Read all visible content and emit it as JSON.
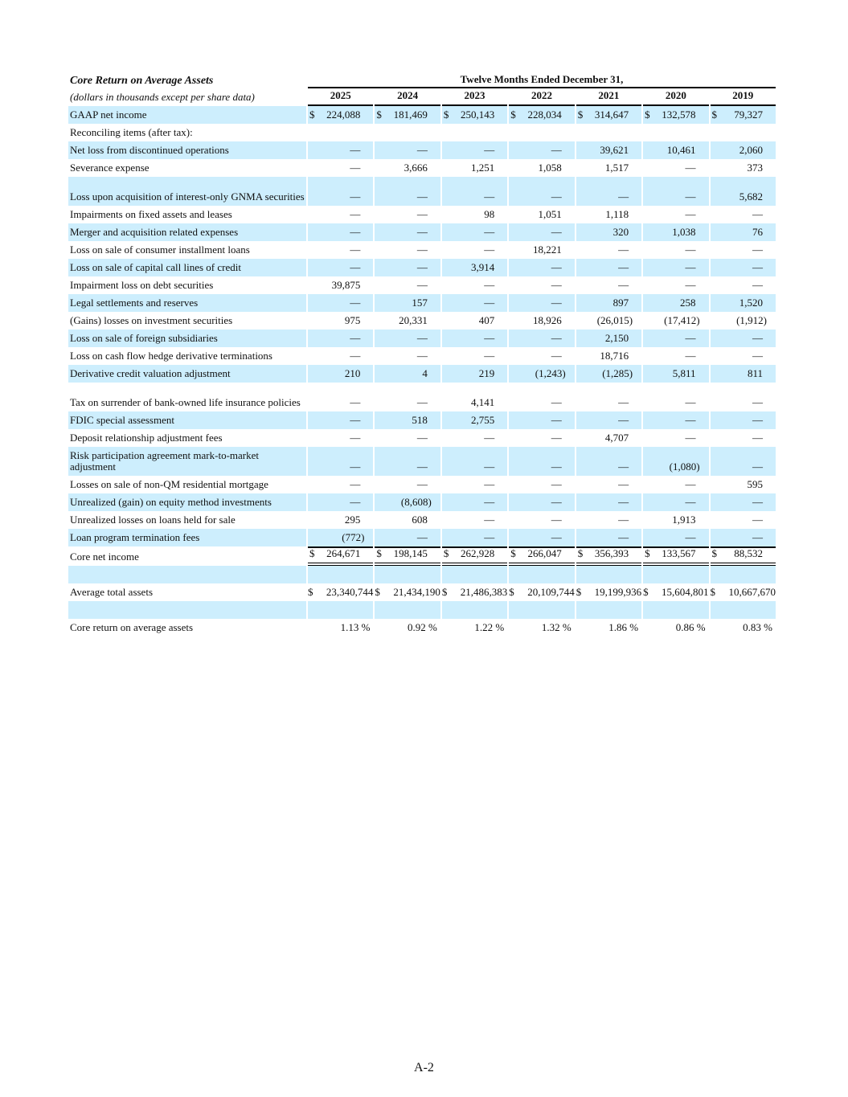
{
  "table": {
    "title": "Core Return on Average Assets",
    "period_header": "Twelve Months Ended December 31,",
    "subtitle": "(dollars in thousands except per share data)",
    "years": [
      "2025",
      "2024",
      "2023",
      "2022",
      "2021",
      "2020",
      "2019"
    ],
    "rows": [
      {
        "label": "GAAP net income",
        "dollar": true,
        "values": [
          "224,088",
          "181,469",
          "250,143",
          "228,034",
          "314,647",
          "132,578",
          "79,327"
        ]
      },
      {
        "label": "Reconciling items (after tax):",
        "values": []
      },
      {
        "label": "Net loss from discontinued operations",
        "values": [
          "—",
          "—",
          "—",
          "—",
          "39,621",
          "10,461",
          "2,060"
        ]
      },
      {
        "label": "Severance expense",
        "values": [
          "—",
          "3,666",
          "1,251",
          "1,058",
          "1,517",
          "—",
          "373"
        ]
      },
      {
        "label": "Loss upon acquisition of interest-only GNMA securities",
        "two": true,
        "values": [
          "—",
          "—",
          "—",
          "—",
          "—",
          "—",
          "5,682"
        ]
      },
      {
        "label": "Impairments on fixed assets and leases",
        "values": [
          "—",
          "—",
          "98",
          "1,051",
          "1,118",
          "—",
          "—"
        ]
      },
      {
        "label": "Merger and acquisition related expenses",
        "values": [
          "—",
          "—",
          "—",
          "—",
          "320",
          "1,038",
          "76"
        ]
      },
      {
        "label": "Loss on sale of consumer installment loans",
        "values": [
          "—",
          "—",
          "—",
          "18,221",
          "—",
          "—",
          "—"
        ]
      },
      {
        "label": "Loss on sale of capital call lines of credit",
        "values": [
          "—",
          "—",
          "3,914",
          "—",
          "—",
          "—",
          "—"
        ]
      },
      {
        "label": "Impairment loss on debt securities",
        "values": [
          "39,875",
          "—",
          "—",
          "—",
          "—",
          "—",
          "—"
        ]
      },
      {
        "label": "Legal settlements and reserves",
        "values": [
          "—",
          "157",
          "—",
          "—",
          "897",
          "258",
          "1,520"
        ]
      },
      {
        "label": "(Gains) losses on investment securities",
        "values": [
          "975",
          "20,331",
          "407",
          "18,926",
          "(26,015)",
          "(17,412)",
          "(1,912)"
        ]
      },
      {
        "label": "Loss on sale of foreign subsidiaries",
        "values": [
          "—",
          "—",
          "—",
          "—",
          "2,150",
          "—",
          "—"
        ]
      },
      {
        "label": "Loss on cash flow hedge derivative terminations",
        "values": [
          "—",
          "—",
          "—",
          "—",
          "18,716",
          "—",
          "—"
        ]
      },
      {
        "label": "Derivative credit valuation adjustment",
        "values": [
          "210",
          "4",
          "219",
          "(1,243)",
          "(1,285)",
          "5,811",
          "811"
        ]
      },
      {
        "label": "Tax on surrender of bank-owned life insurance policies",
        "two": true,
        "values": [
          "—",
          "—",
          "4,141",
          "—",
          "—",
          "—",
          "—"
        ]
      },
      {
        "label": "FDIC special assessment",
        "values": [
          "—",
          "518",
          "2,755",
          "—",
          "—",
          "—",
          "—"
        ]
      },
      {
        "label": "Deposit relationship adjustment fees",
        "values": [
          "—",
          "—",
          "—",
          "—",
          "4,707",
          "—",
          "—"
        ]
      },
      {
        "label": "Risk participation agreement mark-to-market adjustment",
        "two": true,
        "values": [
          "—",
          "—",
          "—",
          "—",
          "—",
          "(1,080)",
          "—"
        ]
      },
      {
        "label": "Losses on sale of non-QM residential mortgage",
        "values": [
          "—",
          "—",
          "—",
          "—",
          "—",
          "—",
          "595"
        ]
      },
      {
        "label": "Unrealized (gain) on equity method investments",
        "values": [
          "—",
          "(8,608)",
          "—",
          "—",
          "—",
          "—",
          "—"
        ]
      },
      {
        "label": "Unrealized losses on loans held for sale",
        "values": [
          "295",
          "608",
          "—",
          "—",
          "—",
          "1,913",
          "—"
        ]
      },
      {
        "label": "Loan program termination fees",
        "values": [
          "(772)",
          "—",
          "—",
          "—",
          "—",
          "—",
          "—"
        ]
      },
      {
        "label": "Core net income",
        "dollar": true,
        "total": true,
        "values": [
          "264,671",
          "198,145",
          "262,928",
          "266,047",
          "356,393",
          "133,567",
          "88,532"
        ]
      },
      {
        "label": "",
        "values": []
      },
      {
        "label": "Average total assets",
        "dollar": true,
        "tight": true,
        "values": [
          "23,340,744",
          "21,434,190",
          "21,486,383",
          "20,109,744",
          "19,199,936",
          "15,604,801",
          "10,667,670"
        ]
      },
      {
        "label": "",
        "values": []
      },
      {
        "label": "Core return on average assets",
        "pct": true,
        "values": [
          "1.13 %",
          "0.92 %",
          "1.22 %",
          "1.32 %",
          "1.86 %",
          "0.86 %",
          "0.83 %"
        ]
      }
    ]
  },
  "footer": {
    "page_number": "A-2"
  }
}
